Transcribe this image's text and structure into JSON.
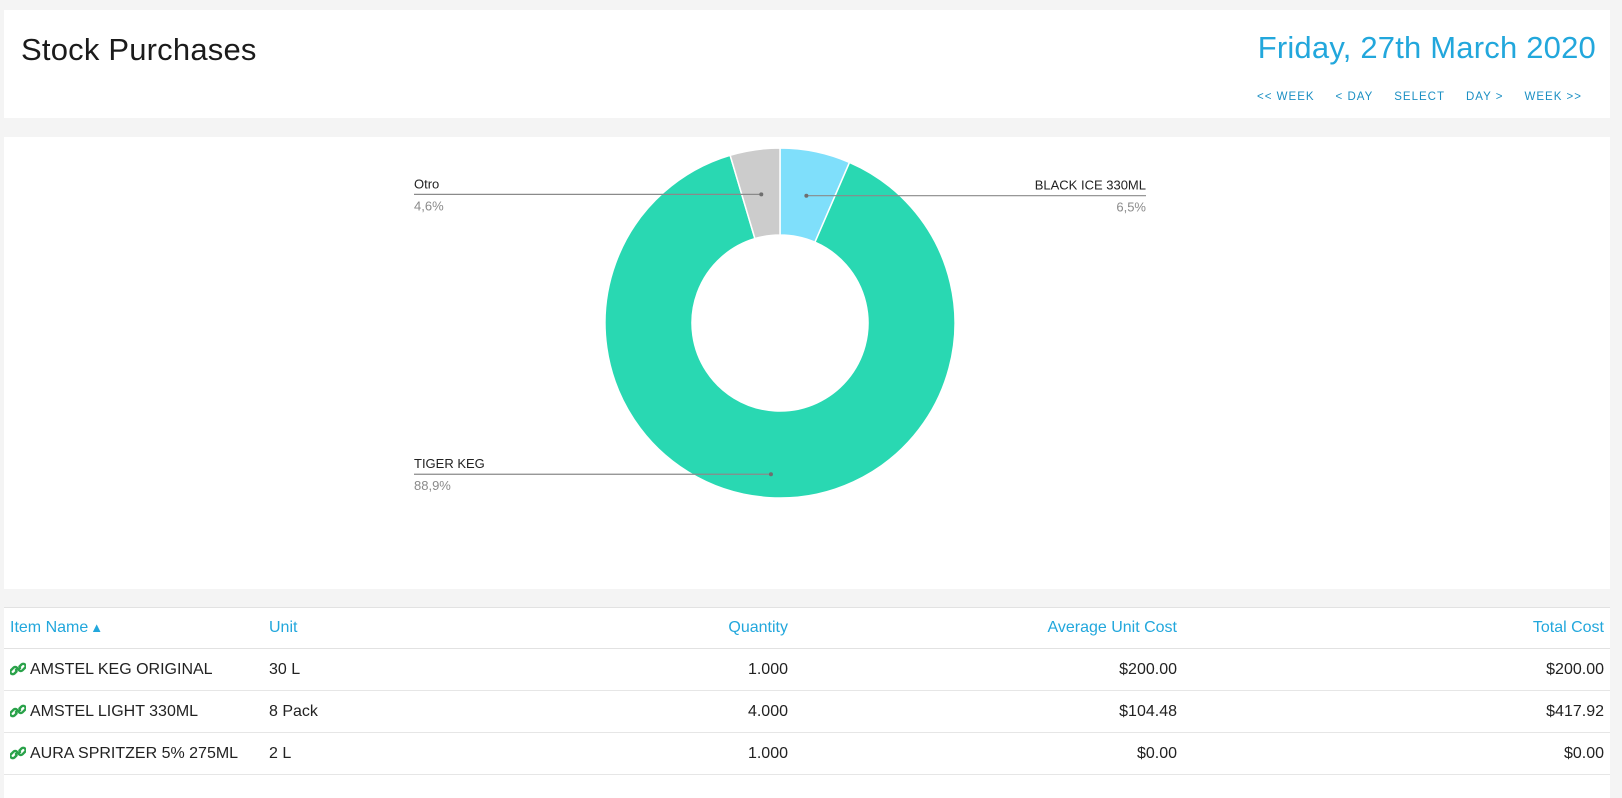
{
  "header": {
    "title": "Stock Purchases",
    "date": "Friday, 27th March 2020",
    "nav": [
      "<< WEEK",
      "< DAY",
      "SELECT",
      "DAY >",
      "WEEK >>"
    ]
  },
  "chart_data": {
    "type": "pie",
    "donut": true,
    "slices": [
      {
        "label": "BLACK ICE 330ML",
        "value": 6.5,
        "display": "6,5%",
        "color": "#7fdffb"
      },
      {
        "label": "TIGER KEG",
        "value": 88.9,
        "display": "88,9%",
        "color": "#29d8b2"
      },
      {
        "label": "Otro",
        "value": 4.6,
        "display": "4,6%",
        "color": "#cccccc"
      }
    ]
  },
  "table": {
    "columns": [
      "Item Name",
      "Unit",
      "Quantity",
      "Average Unit Cost",
      "Total Cost"
    ],
    "sort_icon": "▲",
    "rows": [
      [
        "AMSTEL KEG ORIGINAL",
        "30 L",
        "1.000",
        "$200.00",
        "$200.00"
      ],
      [
        "AMSTEL LIGHT 330ML",
        "8 Pack",
        "4.000",
        "$104.48",
        "$417.92"
      ],
      [
        "AURA SPRITZER 5% 275ML",
        "2 L",
        "1.000",
        "$0.00",
        "$0.00"
      ]
    ],
    "link_icon_color": "#2aa24a"
  }
}
